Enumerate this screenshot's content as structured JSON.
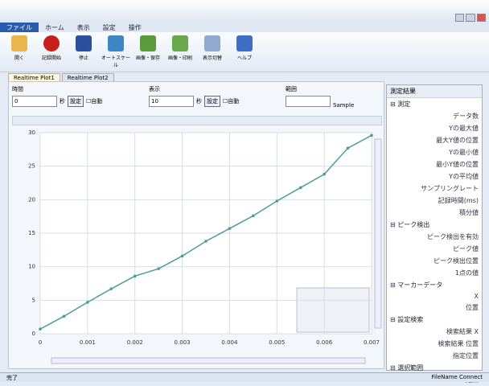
{
  "window": {
    "ribbon_tabs": [
      "ファイル",
      "ホーム",
      "表示",
      "設定",
      "操作"
    ],
    "ribbon_buttons": [
      "開く",
      "記録開始",
      "停止",
      "オートスケール",
      "画像・保存",
      "画像・印刷",
      "表示切替",
      "ヘルプ"
    ]
  },
  "doc_tabs": [
    "Realtime Plot1",
    "Realtime Plot2"
  ],
  "inputs": [
    {
      "label": "時間",
      "value": "0",
      "unit": "秒",
      "button": "設定",
      "check": "自動"
    },
    {
      "label": "表示",
      "value": "10",
      "unit": "秒",
      "button": "設定",
      "check": "自動"
    },
    {
      "label": "範囲",
      "value": "",
      "unit": "Sample"
    }
  ],
  "panel": {
    "title": "測定結果",
    "groups": [
      {
        "title": "測定",
        "items": [
          "データ数",
          "Yの最大値",
          "最大Y値の位置",
          "Yの最小値",
          "最小Y値の位置",
          "Yの平均値",
          "サンプリングレート",
          "記録時間(ms)",
          "積分値"
        ]
      },
      {
        "title": "ピーク検出",
        "items": [
          "ピーク検出を有効",
          "ピーク値",
          "ピーク検出位置",
          "1点の値"
        ]
      },
      {
        "title": "マーカーデータ",
        "items": [
          "X",
          "位置"
        ]
      },
      {
        "title": "設定検索",
        "items": [
          "検索結果 X",
          "検索結果 位置",
          "指定位置"
        ]
      },
      {
        "title": "選択範囲",
        "items": [
          "始点"
        ]
      }
    ]
  },
  "status": {
    "left": "完了",
    "right": "FileName Connect"
  },
  "chart_data": {
    "type": "line",
    "x": [
      0,
      0.0005,
      0.001,
      0.0015,
      0.002,
      0.0025,
      0.003,
      0.0035,
      0.004,
      0.0045,
      0.005,
      0.0055,
      0.006,
      0.0065,
      0.007
    ],
    "series": [
      {
        "name": "Plot1",
        "color": "#4e9c9a",
        "values": [
          0.7,
          2.6,
          4.7,
          6.7,
          8.6,
          9.7,
          11.6,
          13.8,
          15.7,
          17.6,
          19.8,
          21.8,
          23.8,
          27.7,
          29.6
        ]
      }
    ],
    "xlim": [
      0,
      0.007
    ],
    "xticks": [
      0,
      0.001,
      0.002,
      0.003,
      0.004,
      0.005,
      0.006,
      0.007
    ],
    "ylim": [
      0,
      30
    ],
    "yticks": [
      0,
      5,
      10,
      15,
      20,
      25,
      30
    ],
    "grid": true
  }
}
